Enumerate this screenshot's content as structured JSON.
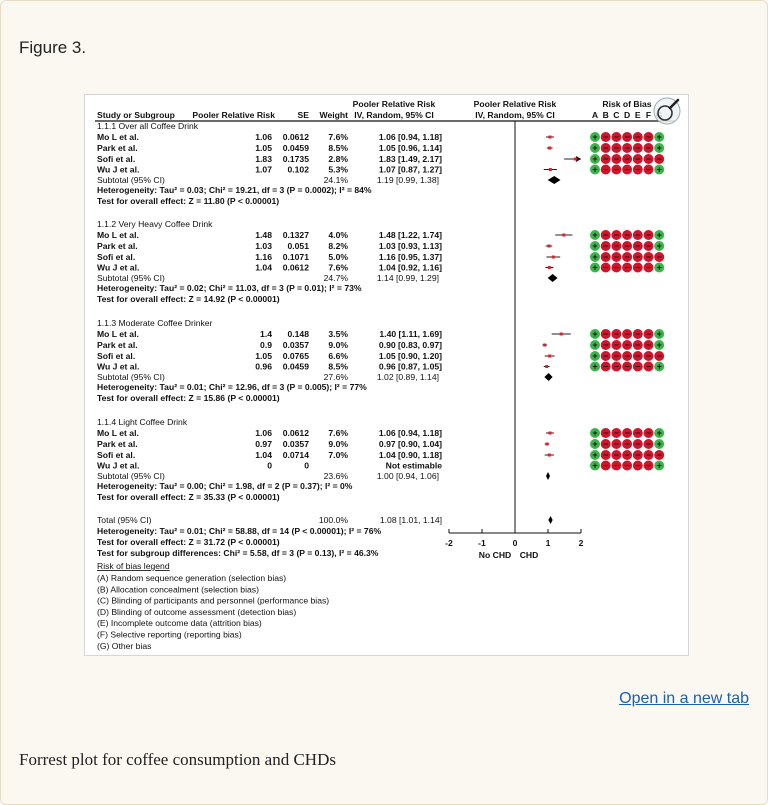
{
  "figure": {
    "label": "Figure 3.",
    "open_link": "Open in a new tab",
    "caption": "Forrest plot for coffee consumption and CHDs",
    "zoom_icon": "magnifier-icon"
  },
  "chart_data": {
    "type": "forest",
    "headers": {
      "study": "Study or Subgroup",
      "rr": "Pooler Relative Risk",
      "se": "SE",
      "weight": "Weight",
      "ci_top": "Pooler Relative Risk",
      "ci_bottom": "IV, Random, 95% CI",
      "plot_top": "Pooler Relative Risk",
      "plot_bottom": "IV, Random, 95% CI",
      "bias_title": "Risk of Bias"
    },
    "bias_letters": [
      "A",
      "B",
      "C",
      "D",
      "E",
      "F",
      "G"
    ],
    "colors": {
      "low_risk": "#3cb44b",
      "high_risk": "#d0142c",
      "marker": "#e0202a"
    },
    "groups": [
      {
        "label": "1.1.1 Over all Coffee Drink",
        "studies": [
          {
            "name": "Mo L et al.",
            "rr": "1.06",
            "se": "0.0612",
            "weight": "7.6%",
            "ci": "1.06 [0.94, 1.18]",
            "est": 1.06,
            "lo": 0.94,
            "hi": 1.18,
            "bias": "+-----+"
          },
          {
            "name": "Park et al.",
            "rr": "1.05",
            "se": "0.0459",
            "weight": "8.5%",
            "ci": "1.05 [0.96, 1.14]",
            "est": 1.05,
            "lo": 0.96,
            "hi": 1.14,
            "bias": "+-----+"
          },
          {
            "name": "Sofi et al.",
            "rr": "1.83",
            "se": "0.1735",
            "weight": "2.8%",
            "ci": "1.83 [1.49, 2.17]",
            "est": 1.83,
            "lo": 1.49,
            "hi": 2.17,
            "bias": "+------"
          },
          {
            "name": "Wu J et al.",
            "rr": "1.07",
            "se": "0.102",
            "weight": "5.3%",
            "ci": "1.07 [0.87, 1.27]",
            "est": 1.07,
            "lo": 0.87,
            "hi": 1.27,
            "bias": "+-----+"
          }
        ],
        "subtotal": {
          "label": "Subtotal (95% CI)",
          "weight": "24.1%",
          "ci": "1.19 [0.99, 1.38]",
          "est": 1.19,
          "lo": 0.99,
          "hi": 1.38
        },
        "heterogeneity": "Heterogeneity: Tau² = 0.03; Chi² = 19.21, df = 3 (P = 0.0002); I² = 84%",
        "overall": "Test for overall effect: Z = 11.80 (P < 0.00001)"
      },
      {
        "label": "1.1.2 Very Heavy Coffee Drink",
        "studies": [
          {
            "name": "Mo L et al.",
            "rr": "1.48",
            "se": "0.1327",
            "weight": "4.0%",
            "ci": "1.48 [1.22, 1.74]",
            "est": 1.48,
            "lo": 1.22,
            "hi": 1.74,
            "bias": "+-----+"
          },
          {
            "name": "Park et al.",
            "rr": "1.03",
            "se": "0.051",
            "weight": "8.2%",
            "ci": "1.03 [0.93, 1.13]",
            "est": 1.03,
            "lo": 0.93,
            "hi": 1.13,
            "bias": "+-----+"
          },
          {
            "name": "Sofi et al.",
            "rr": "1.16",
            "se": "0.1071",
            "weight": "5.0%",
            "ci": "1.16 [0.95, 1.37]",
            "est": 1.16,
            "lo": 0.95,
            "hi": 1.37,
            "bias": "+------"
          },
          {
            "name": "Wu J et al.",
            "rr": "1.04",
            "se": "0.0612",
            "weight": "7.6%",
            "ci": "1.04 [0.92, 1.16]",
            "est": 1.04,
            "lo": 0.92,
            "hi": 1.16,
            "bias": "+-----+"
          }
        ],
        "subtotal": {
          "label": "Subtotal (95% CI)",
          "weight": "24.7%",
          "ci": "1.14 [0.99, 1.29]",
          "est": 1.14,
          "lo": 0.99,
          "hi": 1.29
        },
        "heterogeneity": "Heterogeneity: Tau² = 0.02; Chi² = 11.03, df = 3 (P = 0.01); I² = 73%",
        "overall": "Test for overall effect: Z = 14.92 (P < 0.00001)"
      },
      {
        "label": "1.1.3 Moderate Coffee Drinker",
        "studies": [
          {
            "name": "Mo L et al.",
            "rr": "1.4",
            "se": "0.148",
            "weight": "3.5%",
            "ci": "1.40 [1.11, 1.69]",
            "est": 1.4,
            "lo": 1.11,
            "hi": 1.69,
            "bias": "+-----+"
          },
          {
            "name": "Park et al.",
            "rr": "0.9",
            "se": "0.0357",
            "weight": "9.0%",
            "ci": "0.90 [0.83, 0.97]",
            "est": 0.9,
            "lo": 0.83,
            "hi": 0.97,
            "bias": "+-----+"
          },
          {
            "name": "Sofi et al.",
            "rr": "1.05",
            "se": "0.0765",
            "weight": "6.6%",
            "ci": "1.05 [0.90, 1.20]",
            "est": 1.05,
            "lo": 0.9,
            "hi": 1.2,
            "bias": "+------"
          },
          {
            "name": "Wu J et al.",
            "rr": "0.96",
            "se": "0.0459",
            "weight": "8.5%",
            "ci": "0.96 [0.87, 1.05]",
            "est": 0.96,
            "lo": 0.87,
            "hi": 1.05,
            "bias": "+-----+"
          }
        ],
        "subtotal": {
          "label": "Subtotal (95% CI)",
          "weight": "27.6%",
          "ci": "1.02 [0.89, 1.14]",
          "est": 1.02,
          "lo": 0.89,
          "hi": 1.14
        },
        "heterogeneity": "Heterogeneity: Tau² = 0.01; Chi² = 12.96, df = 3 (P = 0.005); I² = 77%",
        "overall": "Test for overall effect: Z = 15.86 (P < 0.00001)"
      },
      {
        "label": "1.1.4 Light Coffee Drink",
        "studies": [
          {
            "name": "Mo L et al.",
            "rr": "1.06",
            "se": "0.0612",
            "weight": "7.6%",
            "ci": "1.06 [0.94, 1.18]",
            "est": 1.06,
            "lo": 0.94,
            "hi": 1.18,
            "bias": "+-----+"
          },
          {
            "name": "Park et al.",
            "rr": "0.97",
            "se": "0.0357",
            "weight": "9.0%",
            "ci": "0.97 [0.90, 1.04]",
            "est": 0.97,
            "lo": 0.9,
            "hi": 1.04,
            "bias": "+-----+"
          },
          {
            "name": "Sofi et al.",
            "rr": "1.04",
            "se": "0.0714",
            "weight": "7.0%",
            "ci": "1.04 [0.90, 1.18]",
            "est": 1.04,
            "lo": 0.9,
            "hi": 1.18,
            "bias": "+------"
          },
          {
            "name": "Wu J et al.",
            "rr": "0",
            "se": "0",
            "weight": "",
            "ci": "Not estimable",
            "est": null,
            "lo": null,
            "hi": null,
            "bias": "+-----+"
          }
        ],
        "subtotal": {
          "label": "Subtotal (95% CI)",
          "weight": "23.6%",
          "ci": "1.00 [0.94, 1.06]",
          "est": 1.0,
          "lo": 0.94,
          "hi": 1.06
        },
        "heterogeneity": "Heterogeneity: Tau² = 0.00; Chi² = 1.98, df = 2 (P = 0.37); I² = 0%",
        "overall": "Test for overall effect: Z = 35.33 (P < 0.00001)"
      }
    ],
    "total": {
      "label": "Total (95% CI)",
      "weight": "100.0%",
      "ci": "1.08 [1.01, 1.14]",
      "est": 1.08,
      "lo": 1.01,
      "hi": 1.14,
      "heterogeneity": "Heterogeneity: Tau² = 0.01; Chi² = 58.88, df = 14 (P < 0.00001); I² = 76%",
      "overall": "Test for overall effect: Z = 31.72 (P < 0.00001)",
      "subgroup": "Test for subgroup differences: Chi² = 5.58, df = 3 (P = 0.13), I² = 46.3%"
    },
    "x_axis": {
      "ticks": [
        "-2",
        "-1",
        "0",
        "1",
        "2"
      ],
      "tick_values": [
        -2,
        -1,
        0,
        1,
        2
      ],
      "xlim": [
        -2,
        2
      ],
      "left_label": "No CHD",
      "right_label": "CHD"
    },
    "bias_legend": {
      "title": "Risk of bias legend",
      "items": [
        "(A) Random sequence generation (selection bias)",
        "(B) Allocation concealment (selection bias)",
        "(C) Blinding of participants and personnel (performance bias)",
        "(D) Blinding of outcome assessment (detection bias)",
        "(E) Incomplete outcome data (attrition bias)",
        "(F) Selective reporting (reporting bias)",
        "(G) Other bias"
      ]
    }
  }
}
